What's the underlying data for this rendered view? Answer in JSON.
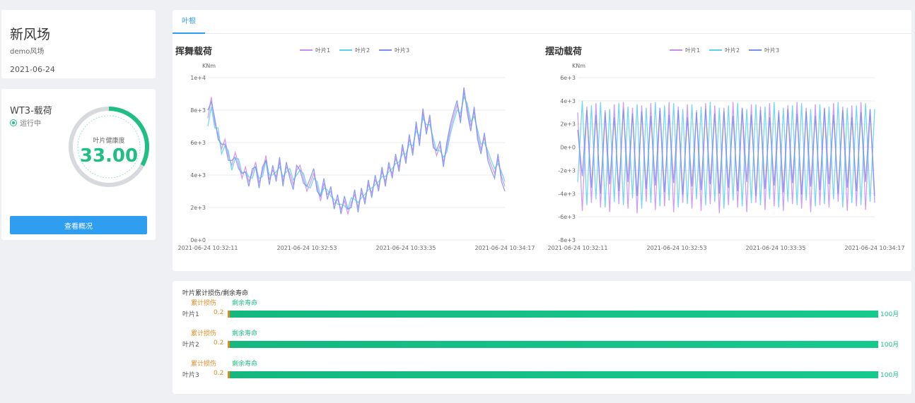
{
  "farm": {
    "name": "新风场",
    "subtitle": "demo风场",
    "date": "2021-06-24"
  },
  "turbine": {
    "name": "WT3-载荷",
    "status": "运行中",
    "gauge_label": "叶片健康度",
    "gauge_value": "33.00",
    "gauge_fraction": 0.33,
    "overview_button": "查看概况"
  },
  "tabs": [
    "叶根"
  ],
  "colors": {
    "blade1": "#c88cf0",
    "blade2": "#5cd0f0",
    "blade3": "#7a8cf0",
    "accent": "#2f9ef0",
    "healthy": "#1fbf83",
    "damage": "#e08a1e"
  },
  "chart_data": [
    {
      "type": "line",
      "title": "挥舞载荷",
      "ylabel": "KNm",
      "yticks": [
        "0e+0",
        "2e+3",
        "4e+3",
        "6e+3",
        "8e+3",
        "1e+4"
      ],
      "ylim": [
        0,
        10000
      ],
      "xticks": [
        "2021-06-24 10:32:11",
        "2021-06-24 10:32:53",
        "2021-06-24 10:33:35",
        "2021-06-24 10:34:17"
      ],
      "grid": true,
      "legend_position": "top",
      "series": [
        {
          "name": "叶片1",
          "values": [
            7500,
            8800,
            7200,
            6500,
            5600,
            6200,
            5200,
            4600,
            5400,
            4700,
            3800,
            4500,
            3600,
            4100,
            4800,
            3500,
            4200,
            5200,
            3700,
            4300,
            3900,
            4800,
            3600,
            4500,
            4100,
            3400,
            4300,
            4600,
            3800,
            3000,
            3500,
            4100,
            3300,
            2400,
            3500,
            2800,
            3000,
            2200,
            2500,
            1900,
            2400,
            1600,
            2300,
            2800,
            2000,
            2900,
            2500,
            3400,
            2900,
            3700,
            3300,
            4200,
            3600,
            4500,
            4100,
            5000,
            4500,
            5600,
            5000,
            6200,
            5500,
            7000,
            6100,
            7800,
            6800,
            7400,
            6000,
            5200,
            5800,
            4800,
            5700,
            6800,
            7600,
            8300,
            7500,
            9100,
            8100,
            7000,
            7900,
            6500,
            5600,
            6300,
            5200,
            4600,
            4100,
            5000,
            3900,
            3300
          ]
        },
        {
          "name": "叶片2",
          "values": [
            7000,
            8200,
            6900,
            6900,
            5300,
            5800,
            5500,
            4300,
            5000,
            5000,
            4100,
            4200,
            3900,
            3800,
            4500,
            3800,
            3900,
            4900,
            4000,
            4000,
            4200,
            4500,
            3900,
            4200,
            4400,
            3700,
            4000,
            4300,
            4100,
            3300,
            3200,
            3800,
            3600,
            2700,
            3200,
            3100,
            2700,
            2500,
            2200,
            2200,
            2100,
            1900,
            2600,
            2500,
            2300,
            2600,
            2800,
            3100,
            3200,
            3400,
            3600,
            3900,
            3900,
            4200,
            4400,
            4700,
            4800,
            5300,
            5300,
            5900,
            5800,
            6700,
            6400,
            7500,
            7100,
            7100,
            6300,
            5500,
            5500,
            5100,
            5400,
            6500,
            7300,
            8000,
            7800,
            8800,
            8400,
            7300,
            7600,
            6800,
            5900,
            6000,
            5500,
            4900,
            4400,
            4700,
            4200,
            3600
          ]
        },
        {
          "name": "叶片3",
          "values": [
            8000,
            8500,
            7500,
            6200,
            5900,
            5900,
            4900,
            4900,
            5100,
            4400,
            4100,
            4200,
            3300,
            4400,
            4500,
            3200,
            4500,
            4900,
            3400,
            4600,
            3600,
            5100,
            3300,
            4800,
            3800,
            3100,
            4600,
            4300,
            3500,
            3300,
            3800,
            4400,
            3000,
            2700,
            3800,
            2500,
            3300,
            1900,
            2800,
            1600,
            2700,
            1900,
            2000,
            3100,
            1700,
            3200,
            2200,
            3700,
            2600,
            4000,
            3000,
            4500,
            3300,
            4800,
            3800,
            5300,
            4200,
            5900,
            4700,
            6500,
            5200,
            7300,
            5800,
            8100,
            6500,
            7700,
            5700,
            5500,
            6100,
            4500,
            6000,
            7100,
            7900,
            8600,
            7200,
            9400,
            7800,
            6700,
            8200,
            6200,
            5300,
            6600,
            4900,
            4300,
            3800,
            5300,
            3600,
            3000
          ]
        }
      ]
    },
    {
      "type": "line",
      "title": "摆动载荷",
      "ylabel": "KNm",
      "yticks": [
        "-8e+3",
        "-6e+3",
        "-4e+3",
        "-2e+3",
        "0e+0",
        "2e+3",
        "4e+3",
        "6e+3"
      ],
      "ylim": [
        -8000,
        6000
      ],
      "xticks": [
        "2021-06-24 10:32:11",
        "2021-06-24 10:32:53",
        "2021-06-24 10:33:35",
        "2021-06-24 10:34:17"
      ],
      "grid": true,
      "legend_position": "top",
      "series": [
        {
          "name": "叶片1",
          "values": [
            3000,
            -5500,
            3500,
            -4800,
            3800,
            -5200,
            3200,
            -5600,
            3700,
            -4900,
            3900,
            -5300,
            3400,
            -5700,
            3600,
            -4700,
            3800,
            -5400,
            3300,
            -5100,
            3900,
            -5600,
            3500,
            -4800,
            3700,
            -5300,
            3200,
            -5500,
            3800,
            -4900,
            3600,
            -5700,
            3400,
            -5000,
            3900,
            -5200,
            3300,
            -5600,
            3700,
            -4800,
            3500,
            -5400,
            3800,
            -5100,
            3200,
            -5500,
            3600,
            -4900,
            3900,
            -5300,
            3400,
            -5600,
            3700,
            -5000,
            3300,
            -5200,
            3800,
            -4700,
            3500,
            -5500,
            3600,
            -5100,
            3900,
            -5400,
            3200,
            -4800
          ]
        },
        {
          "name": "叶片2",
          "values": [
            -3000,
            4000,
            -5000,
            3600,
            -4500,
            3900,
            -5200,
            3300,
            -4700,
            3800,
            -5000,
            3500,
            -4400,
            3700,
            -5300,
            3400,
            -4800,
            3900,
            -5100,
            3600,
            -4600,
            3800,
            -5200,
            3300,
            -4900,
            3700,
            -4500,
            3500,
            -5000,
            3900,
            -4700,
            3400,
            -5300,
            3600,
            -4600,
            3800,
            -5100,
            3300,
            -4800,
            3700,
            -5000,
            3500,
            -4500,
            3900,
            -5200,
            3400,
            -4700,
            3600,
            -5000,
            3800,
            -4600,
            3300,
            -5100,
            3700,
            -4900,
            3500,
            -4500,
            3900,
            -5200,
            3400,
            -4800,
            3600,
            -5000,
            3800,
            -4700,
            3300
          ]
        },
        {
          "name": "叶片3",
          "values": [
            1500,
            -2500,
            3200,
            -3500,
            2800,
            -4000,
            3000,
            -3200,
            2600,
            -3800,
            3300,
            -3000,
            2900,
            -4200,
            3100,
            -3600,
            2700,
            -3300,
            3400,
            -3900,
            2800,
            -3100,
            3200,
            -4100,
            2600,
            -3400,
            3000,
            -3700,
            3300,
            -3200,
            2900,
            -4000,
            3100,
            -3500,
            2700,
            -3800,
            3400,
            -3000,
            2800,
            -4200,
            3200,
            -3600,
            2600,
            -3300,
            3000,
            -3900,
            3300,
            -3100,
            2900,
            -4100,
            3100,
            -3400,
            2700,
            -3700,
            3400,
            -3200,
            2800,
            -4000,
            3200,
            -3500,
            2600,
            -3800,
            3000,
            -3000,
            3300,
            -4200
          ]
        }
      ]
    }
  ],
  "life": {
    "title": "叶片累计损伤/剩余寿命",
    "rows": [
      {
        "label": "叶片1",
        "damage_legend": "累计损伤",
        "remaining_legend": "剩余寿命",
        "damage_value": "0.2",
        "damage_fraction": 0.002,
        "remaining_value": "100月"
      },
      {
        "label": "叶片2",
        "damage_legend": "累计损伤",
        "remaining_legend": "剩余寿命",
        "damage_value": "0.2",
        "damage_fraction": 0.002,
        "remaining_value": "100月"
      },
      {
        "label": "叶片3",
        "damage_legend": "累计损伤",
        "remaining_legend": "剩余寿命",
        "damage_value": "0.2",
        "damage_fraction": 0.002,
        "remaining_value": "100月"
      }
    ]
  }
}
